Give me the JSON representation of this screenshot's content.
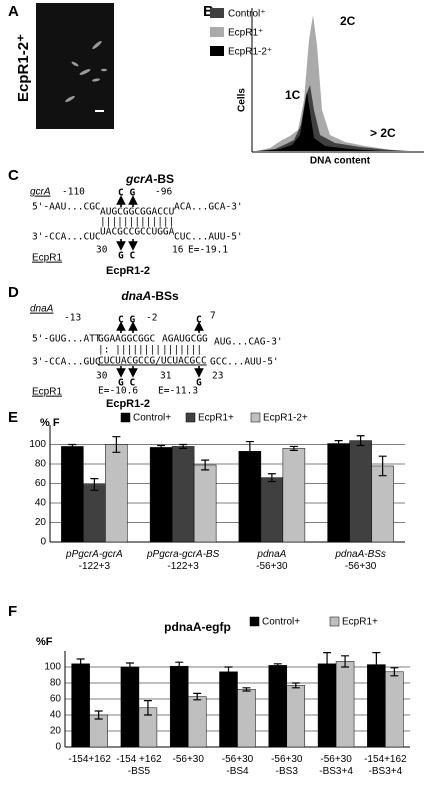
{
  "panel_a": {
    "letter": "A",
    "label": "EcpR1-2⁺"
  },
  "panel_b": {
    "letter": "B",
    "legend": [
      "Control⁺",
      "EcpR1⁺",
      "EcpR1-2⁺"
    ],
    "y_label": "Cells",
    "x_label": "DNA content",
    "peaks": [
      "2C",
      "1C",
      "> 2C"
    ]
  },
  "panel_c": {
    "letter": "C",
    "title_gene": "gcrA",
    "title_suffix": "-BS",
    "gene": "gcrA",
    "pos_start": "-110",
    "pos_end": "-96",
    "top_left": "5'-AAU...CGC",
    "top_site": "AUGCGGCGGACCU",
    "top_right": "ACA...GCA-3'",
    "pairing": "|||||||||||||",
    "bottom_site": "UACGCCGCCUGGA",
    "bottom_left": "3'-CCA...CUC",
    "bottom_right": "CUC...AUU-5'",
    "mut_top": "C G",
    "mut_bottom": "G C",
    "srna_start": "30",
    "srna_end": "16",
    "energy": "E=-19.1",
    "srna": "EcpR1",
    "mutant": "EcpR1-2"
  },
  "panel_d": {
    "letter": "D",
    "title_gene": "dnaA",
    "title_suffix": "-BSs",
    "gene": "dnaA",
    "pos_1": "-13",
    "pos_2": "-2",
    "pos_3": "7",
    "top_left": "5'-GUG...ATT",
    "top_site_1": "GGAAGGCGGC",
    "top_site_2": "AGAUGCGG",
    "top_right": "AUG...CAG-3'",
    "pairing_1": "|: ||||||||",
    "pairing_2": "|||||||",
    "bottom_left": "3'-CCA...GUC",
    "bottom_site": "CUCUACGCCG/UCUACGCC",
    "bottom_right": "GCC...AUU-5'",
    "mut_top_1": "C G",
    "mut_top_2": "C",
    "mut_bottom_1": "G C",
    "mut_bottom_2": "G",
    "num_1": "30",
    "num_2": "31",
    "num_3": "23",
    "energy_1": "E=-10.6",
    "energy_2": "E=-11.3",
    "srna": "EcpR1",
    "mutant": "EcpR1-2"
  },
  "chart_data": [
    {
      "type": "bar",
      "label": "E",
      "ylabel": "% F",
      "categories": [
        [
          "pPgcrA-gcrA",
          "-122+3"
        ],
        [
          "pPgcra-gcrA-BS",
          "-122+3"
        ],
        [
          "pdnaA",
          "-56+30"
        ],
        [
          "pdnaA-BSs",
          "-56+30"
        ]
      ],
      "series": [
        {
          "name": "Control+",
          "color": "#000000",
          "values": [
            98,
            97,
            93,
            101
          ],
          "errors": [
            2,
            2,
            10,
            3
          ]
        },
        {
          "name": "EcpR1+",
          "color": "#404040",
          "values": [
            59,
            98,
            66,
            104
          ],
          "errors": [
            6,
            2,
            4,
            5
          ]
        },
        {
          "name": "EcpR1-2+",
          "color": "#c0c0c0",
          "values": [
            100,
            79,
            96,
            78
          ],
          "errors": [
            8,
            5,
            2,
            10
          ]
        }
      ],
      "ylim": [
        0,
        120
      ],
      "yticks": [
        0,
        20,
        40,
        60,
        80,
        100
      ],
      "grid": true
    },
    {
      "type": "bar",
      "label": "F",
      "title": "pdnaA-egfp",
      "ylabel": "%F",
      "categories": [
        [
          "-154+162"
        ],
        [
          "-154 +162",
          "-BS5"
        ],
        [
          "-56+30"
        ],
        [
          "-56+30",
          "-BS4"
        ],
        [
          "-56+30",
          "-BS3"
        ],
        [
          "-56+30",
          "-BS3+4"
        ],
        [
          "-154+162",
          "-BS3+4"
        ]
      ],
      "series": [
        {
          "name": "Control+",
          "color": "#000000",
          "values": [
            104,
            100,
            101,
            94,
            102,
            104,
            103
          ],
          "errors": [
            6,
            5,
            5,
            6,
            2,
            14,
            15
          ]
        },
        {
          "name": "EcpR1+",
          "color": "#bfbfbf",
          "values": [
            40,
            49,
            63,
            72,
            77,
            107,
            94
          ],
          "errors": [
            5,
            9,
            4,
            2,
            3,
            7,
            5
          ]
        }
      ],
      "ylim": [
        0,
        120
      ],
      "yticks": [
        0,
        20,
        40,
        60,
        80,
        100
      ],
      "grid": true
    }
  ]
}
